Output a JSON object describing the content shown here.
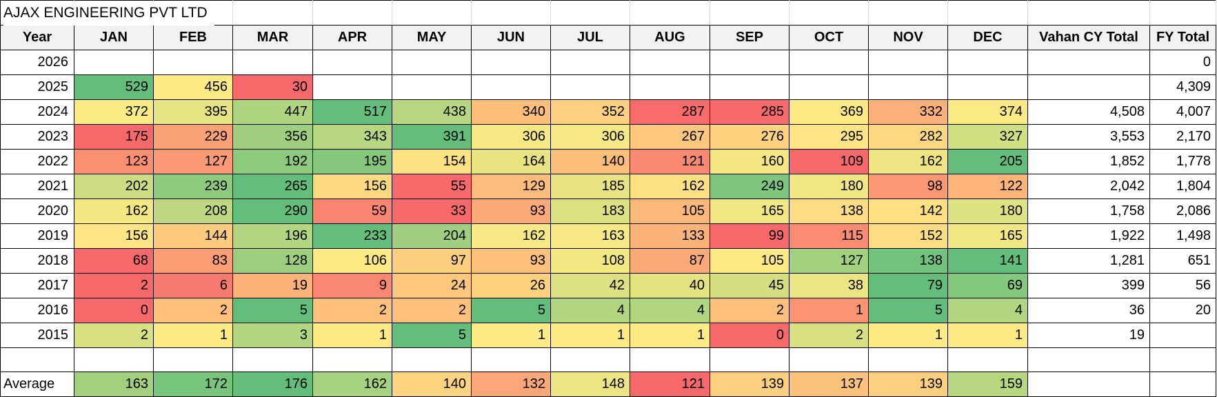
{
  "sheet": {
    "title": "AJAX ENGINEERING PVT LTD",
    "columns": [
      "Year",
      "JAN",
      "FEB",
      "MAR",
      "APR",
      "MAY",
      "JUN",
      "JUL",
      "AUG",
      "SEP",
      "OCT",
      "NOV",
      "DEC",
      "Vahan CY Total",
      "FY Total"
    ],
    "rows": [
      {
        "year": "2026",
        "months": [
          null,
          null,
          null,
          null,
          null,
          null,
          null,
          null,
          null,
          null,
          null,
          null
        ],
        "cy": "",
        "fy": "0",
        "fy_flag": true
      },
      {
        "year": "2025",
        "months": [
          529,
          456,
          30,
          null,
          null,
          null,
          null,
          null,
          null,
          null,
          null,
          null
        ],
        "cy": "",
        "fy": "4,309",
        "fy_flag": true
      },
      {
        "year": "2024",
        "months": [
          372,
          395,
          447,
          517,
          438,
          340,
          352,
          287,
          285,
          369,
          332,
          374
        ],
        "cy": "4,508",
        "fy": "4,007",
        "fy_flag": true
      },
      {
        "year": "2023",
        "months": [
          175,
          229,
          356,
          343,
          391,
          306,
          306,
          267,
          276,
          295,
          282,
          327
        ],
        "cy": "3,553",
        "fy": "2,170",
        "fy_flag": true
      },
      {
        "year": "2022",
        "months": [
          123,
          127,
          192,
          195,
          154,
          164,
          140,
          121,
          160,
          109,
          162,
          205
        ],
        "cy": "1,852",
        "fy": "1,778",
        "fy_flag": true
      },
      {
        "year": "2021",
        "months": [
          202,
          239,
          265,
          156,
          55,
          129,
          185,
          162,
          249,
          180,
          98,
          122
        ],
        "cy": "2,042",
        "fy": "1,804",
        "fy_flag": true
      },
      {
        "year": "2020",
        "months": [
          162,
          208,
          290,
          59,
          33,
          93,
          183,
          105,
          165,
          138,
          142,
          180
        ],
        "cy": "1,758",
        "fy": "2,086",
        "fy_flag": true
      },
      {
        "year": "2019",
        "months": [
          156,
          144,
          196,
          233,
          204,
          162,
          163,
          133,
          99,
          115,
          152,
          165
        ],
        "cy": "1,922",
        "fy": "1,498",
        "fy_flag": true
      },
      {
        "year": "2018",
        "months": [
          68,
          83,
          128,
          106,
          97,
          93,
          108,
          87,
          105,
          127,
          138,
          141
        ],
        "cy": "1,281",
        "fy": "651",
        "fy_flag": true
      },
      {
        "year": "2017",
        "months": [
          2,
          6,
          19,
          9,
          24,
          26,
          42,
          40,
          45,
          38,
          79,
          69
        ],
        "cy": "399",
        "fy": "56",
        "fy_flag": true
      },
      {
        "year": "2016",
        "months": [
          0,
          2,
          5,
          2,
          2,
          5,
          4,
          4,
          2,
          1,
          5,
          4
        ],
        "cy": "36",
        "fy": "20",
        "fy_flag": true
      },
      {
        "year": "2015",
        "months": [
          2,
          1,
          3,
          1,
          5,
          1,
          1,
          1,
          0,
          2,
          1,
          1
        ],
        "cy": "19",
        "fy": "",
        "fy_flag": false
      }
    ],
    "average": {
      "label": "Average",
      "months": [
        163,
        172,
        176,
        162,
        140,
        132,
        148,
        121,
        139,
        137,
        139,
        159
      ]
    },
    "colors": {
      "heatmap_min": "#F8696B",
      "heatmap_mid": "#FFEB84",
      "heatmap_max": "#63BE7B",
      "header_bg": "#F2F2F2",
      "grid_border": "#000000",
      "faint_gridline": "#D9D9D9",
      "flag_triangle": "#1E7145"
    }
  }
}
